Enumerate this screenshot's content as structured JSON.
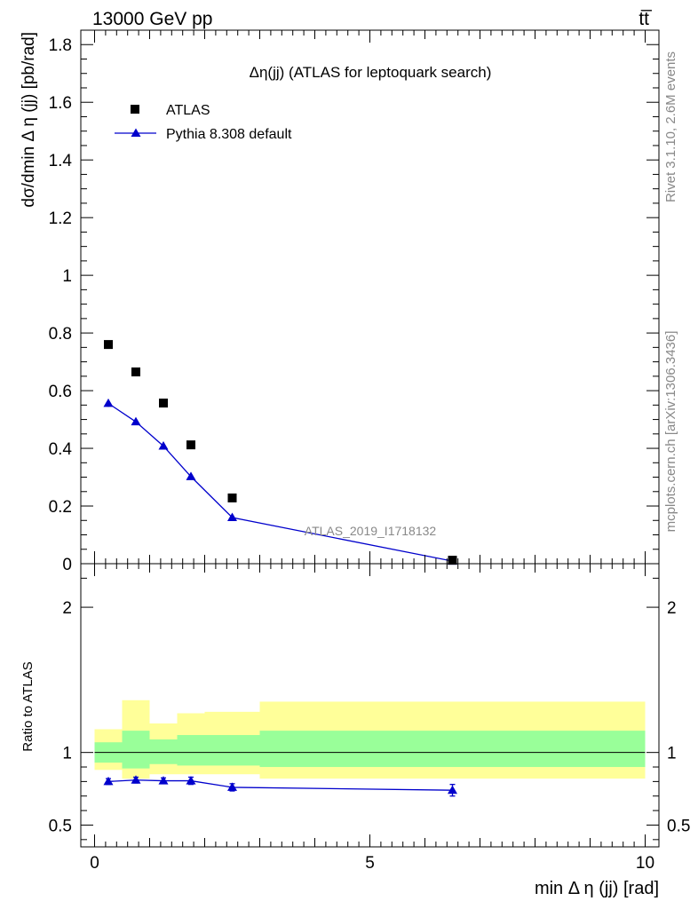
{
  "header": {
    "left": "13000 GeV pp",
    "right": "tt̅"
  },
  "side_labels": {
    "top": "Rivet 3.1.10,  2.6M events",
    "bottom": "mcplots.cern.ch [arXiv:1306.3436]"
  },
  "watermark": "ATLAS_2019_I1718132",
  "colors": {
    "mc": "#0000cc",
    "band_inner": "#99ff99",
    "band_outer": "#ffff99",
    "data": "#000000"
  },
  "chart_data": [
    {
      "type": "scatter",
      "title": "Δη(jj) (ATLAS for leptoquark search)",
      "ylabel": "dσ/dmin Δ η (jj) [pb/rad]",
      "xlim": [
        -0.25,
        10.25
      ],
      "ylim": [
        0,
        1.85
      ],
      "ytick_labels": [
        "0",
        "0.2",
        "0.4",
        "0.6",
        "0.8",
        "1",
        "1.2",
        "1.4",
        "1.6",
        "1.8"
      ],
      "legend": {
        "placement": "top-left",
        "entries": [
          "ATLAS",
          "Pythia 8.308 default"
        ]
      },
      "series": [
        {
          "name": "ATLAS",
          "marker": "square",
          "x": [
            0.25,
            0.75,
            1.25,
            1.75,
            2.5,
            6.5
          ],
          "y": [
            0.76,
            0.665,
            0.557,
            0.412,
            0.228,
            0.012
          ]
        },
        {
          "name": "Pythia 8.308 default",
          "marker": "triangle",
          "x": [
            0.25,
            0.75,
            1.25,
            1.75,
            2.5,
            6.5
          ],
          "y": [
            0.556,
            0.492,
            0.408,
            0.302,
            0.16,
            0.009
          ],
          "err": [
            0.012,
            0.01,
            0.009,
            0.008,
            0.006,
            0.001
          ]
        }
      ]
    },
    {
      "type": "line",
      "ylabel": "Ratio to ATLAS",
      "xlabel": "min Δ η (jj) [rad]",
      "xlim": [
        -0.25,
        10.25
      ],
      "ylim": [
        0.35,
        2.3
      ],
      "xtick_labels": [
        "0",
        "5",
        "10"
      ],
      "ytick_labels": [
        "0.5",
        "1",
        "2"
      ],
      "bands": [
        {
          "lo": 0,
          "hi": 0.5,
          "inner": [
            0.93,
            1.07
          ],
          "outer": [
            0.88,
            1.16
          ]
        },
        {
          "lo": 0.5,
          "hi": 1.0,
          "inner": [
            0.89,
            1.15
          ],
          "outer": [
            0.82,
            1.36
          ]
        },
        {
          "lo": 1.0,
          "hi": 1.5,
          "inner": [
            0.92,
            1.09
          ],
          "outer": [
            0.85,
            1.2
          ]
        },
        {
          "lo": 1.5,
          "hi": 2.0,
          "inner": [
            0.91,
            1.12
          ],
          "outer": [
            0.85,
            1.27
          ]
        },
        {
          "lo": 2.0,
          "hi": 3.0,
          "inner": [
            0.91,
            1.12
          ],
          "outer": [
            0.85,
            1.28
          ]
        },
        {
          "lo": 3.0,
          "hi": 10.0,
          "inner": [
            0.9,
            1.15
          ],
          "outer": [
            0.82,
            1.35
          ]
        }
      ],
      "series": [
        {
          "name": "Pythia 8.308 default",
          "x": [
            0.25,
            0.75,
            1.25,
            1.75,
            2.5,
            6.5
          ],
          "y": [
            0.8,
            0.81,
            0.805,
            0.805,
            0.76,
            0.74
          ],
          "err": [
            0.02,
            0.02,
            0.02,
            0.025,
            0.025,
            0.04
          ]
        }
      ]
    }
  ]
}
